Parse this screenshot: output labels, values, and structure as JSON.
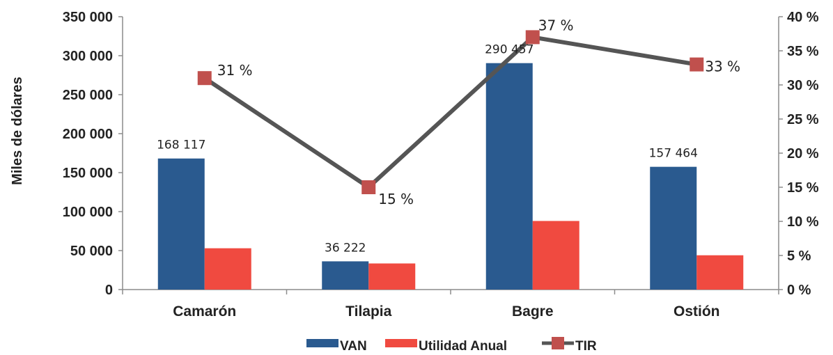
{
  "chart_data": {
    "type": "bar",
    "categories": [
      "Camarón",
      "Tilapia",
      "Bagre",
      "Ostión"
    ],
    "series": [
      {
        "name": "VAN",
        "kind": "bar",
        "axis": "left",
        "values": [
          168117,
          36222,
          290457,
          157464
        ],
        "labels": [
          "168 117",
          "36 222",
          "290 457",
          "157 464"
        ],
        "color": "#2a5a8f"
      },
      {
        "name": "Utilidad Anual",
        "kind": "bar",
        "axis": "left",
        "values": [
          53000,
          33500,
          88000,
          44000
        ],
        "color": "#f04a40"
      },
      {
        "name": "TIR",
        "kind": "line",
        "axis": "right",
        "values": [
          31,
          15,
          37,
          33
        ],
        "labels": [
          "31 %",
          "15 %",
          "37 %",
          "33 %"
        ],
        "color": "#555555",
        "marker_color": "#c0504d"
      }
    ],
    "ylabel": "Miles de dólares",
    "ylim": [
      0,
      350000
    ],
    "yticks": [
      "0",
      "50 000",
      "100 000",
      "150 000",
      "200 000",
      "250 000",
      "300 000",
      "350 000"
    ],
    "y2lim": [
      0,
      40
    ],
    "y2ticks": [
      "0 %",
      "5 %",
      "10 %",
      "15 %",
      "20 %",
      "25 %",
      "30 %",
      "35 %",
      "40 %"
    ],
    "legend_position": "bottom",
    "grid": false
  }
}
